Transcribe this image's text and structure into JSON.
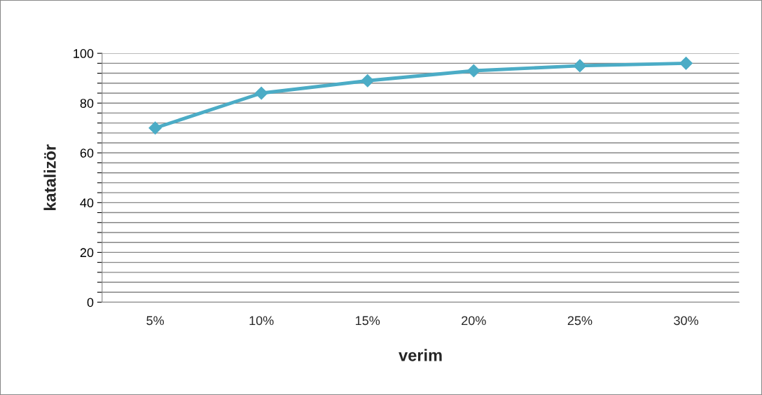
{
  "chart_data": {
    "type": "line",
    "xlabel": "verim",
    "ylabel": "katalizör",
    "categories": [
      "5%",
      "10%",
      "15%",
      "20%",
      "25%",
      "30%"
    ],
    "series": [
      {
        "color": "#4bacc6",
        "values": [
          70,
          84,
          89,
          93,
          95,
          96
        ]
      }
    ],
    "ylim": [
      0,
      100
    ],
    "yticks": [
      0,
      {
        "value": 4,
        "label": null
      },
      {
        "value": 8,
        "label": null
      },
      {
        "value": 12,
        "label": null
      },
      {
        "value": 16,
        "label": null
      },
      20,
      {
        "value": 24,
        "label": null
      },
      {
        "value": 28,
        "label": null
      },
      {
        "value": 32,
        "label": null
      },
      {
        "value": 36,
        "label": null
      },
      40,
      {
        "value": 44,
        "label": null
      },
      {
        "value": 48,
        "label": null
      },
      {
        "value": 52,
        "label": null
      },
      {
        "value": 56,
        "label": null
      },
      60,
      {
        "value": 64,
        "label": null
      },
      {
        "value": 68,
        "label": null
      },
      {
        "value": 72,
        "label": null
      },
      {
        "value": 76,
        "label": null
      },
      80,
      {
        "value": 84,
        "label": null
      },
      {
        "value": 88,
        "label": null
      },
      {
        "value": 92,
        "label": null
      },
      {
        "value": 96,
        "label": null
      },
      100
    ],
    "grid": "y",
    "marker": "diamond",
    "line_style": "solid",
    "legend": false
  }
}
